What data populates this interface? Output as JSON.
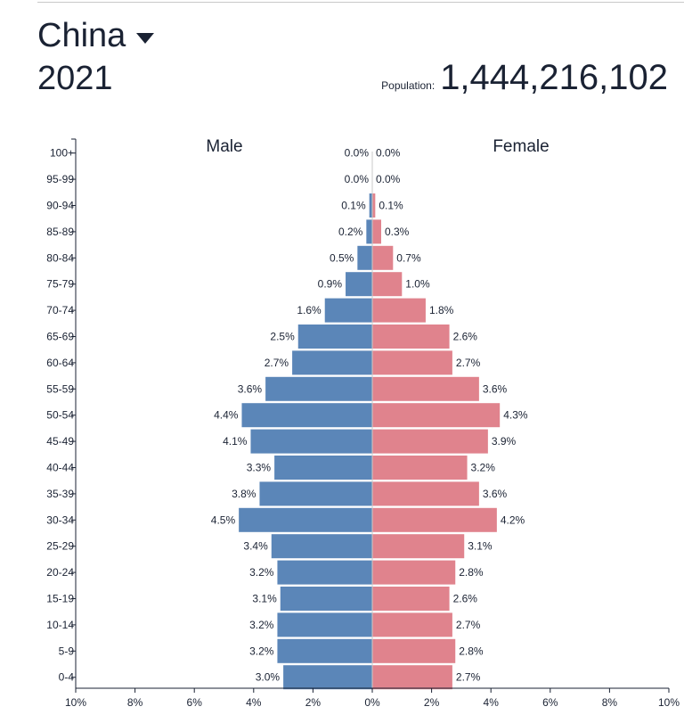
{
  "header": {
    "country": "China",
    "year": "2021",
    "population_label": "Population:",
    "population_value": "1,444,216,102"
  },
  "colors": {
    "male": "#5b86b8",
    "female": "#e0838d"
  },
  "icons": {
    "country_dropdown": "caret-down-icon"
  },
  "chart_data": {
    "type": "bar",
    "orientation": "horizontal",
    "categories": [
      "100+",
      "95-99",
      "90-94",
      "85-89",
      "80-84",
      "75-79",
      "70-74",
      "65-69",
      "60-64",
      "55-59",
      "50-54",
      "45-49",
      "40-44",
      "35-39",
      "30-34",
      "25-29",
      "20-24",
      "15-19",
      "10-14",
      "5-9",
      "0-4"
    ],
    "series": [
      {
        "name": "Male",
        "values": [
          0.0,
          0.0,
          0.1,
          0.2,
          0.5,
          0.9,
          1.6,
          2.5,
          2.7,
          3.6,
          4.4,
          4.1,
          3.3,
          3.8,
          4.5,
          3.4,
          3.2,
          3.1,
          3.2,
          3.2,
          3.0
        ],
        "labels": [
          "0.0%",
          "0.0%",
          "0.1%",
          "0.2%",
          "0.5%",
          "0.9%",
          "1.6%",
          "2.5%",
          "2.7%",
          "3.6%",
          "4.4%",
          "4.1%",
          "3.3%",
          "3.8%",
          "4.5%",
          "3.4%",
          "3.2%",
          "3.1%",
          "3.2%",
          "3.2%",
          "3.0%"
        ]
      },
      {
        "name": "Female",
        "values": [
          0.0,
          0.0,
          0.1,
          0.3,
          0.7,
          1.0,
          1.8,
          2.6,
          2.7,
          3.6,
          4.3,
          3.9,
          3.2,
          3.6,
          4.2,
          3.1,
          2.8,
          2.6,
          2.7,
          2.8,
          2.7
        ],
        "labels": [
          "0.0%",
          "0.0%",
          "0.1%",
          "0.3%",
          "0.7%",
          "1.0%",
          "1.8%",
          "2.6%",
          "2.7%",
          "3.6%",
          "4.3%",
          "3.9%",
          "3.2%",
          "3.6%",
          "4.2%",
          "3.1%",
          "2.8%",
          "2.6%",
          "2.7%",
          "2.8%",
          "2.7%"
        ]
      }
    ],
    "x_ticks": [
      "10%",
      "8%",
      "6%",
      "4%",
      "2%",
      "0%",
      "2%",
      "4%",
      "6%",
      "8%",
      "10%"
    ],
    "xlim": [
      -10,
      10
    ],
    "grid": false
  }
}
